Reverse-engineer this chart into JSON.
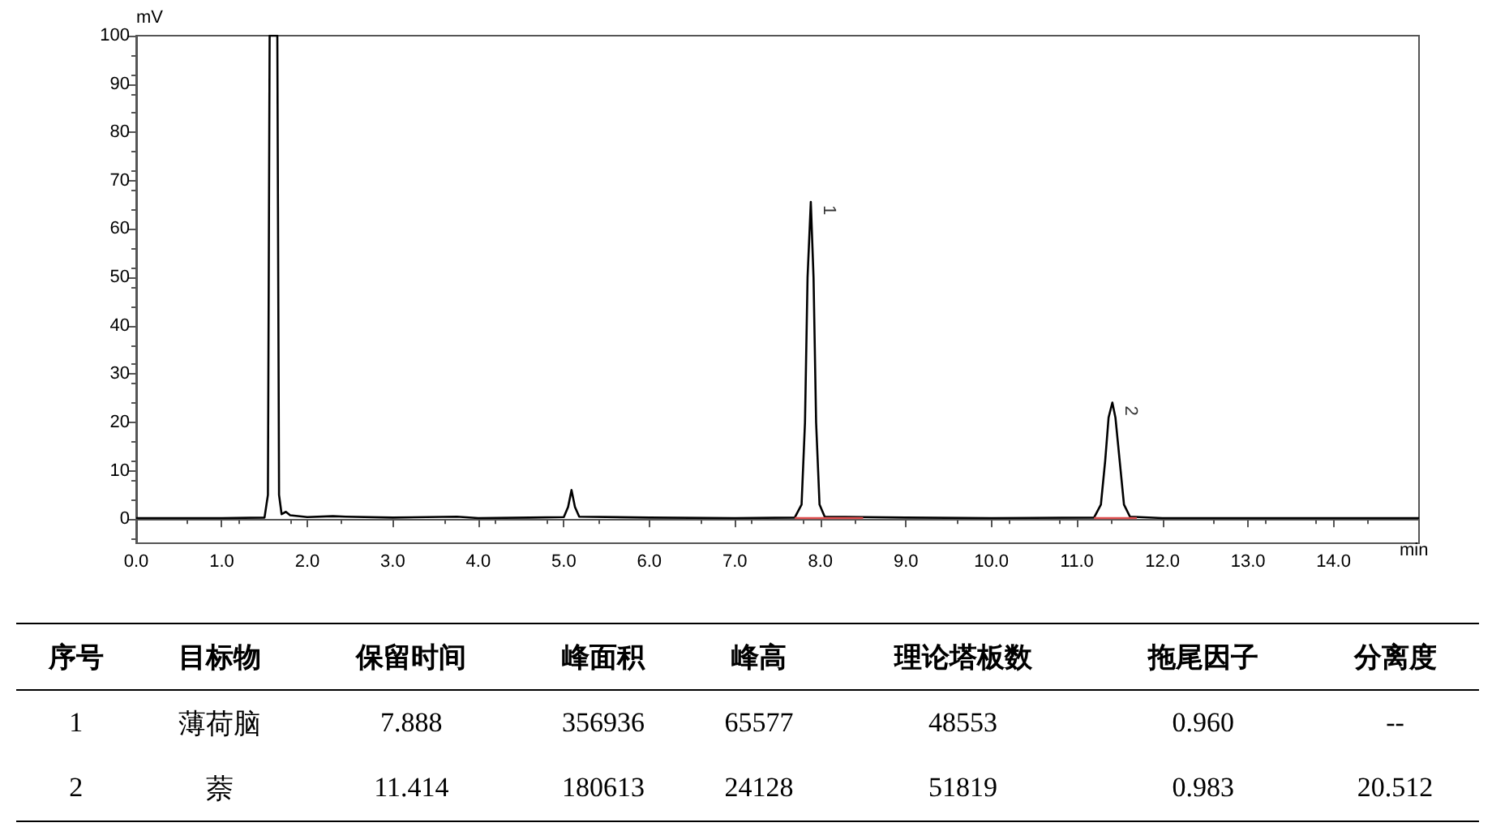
{
  "chart_data": [
    {
      "type": "line",
      "xlabel": "min",
      "ylabel": "mV",
      "marker": "none",
      "xlim": [
        0,
        15
      ],
      "xticks": [
        {
          "value": 0,
          "label": "0.0"
        },
        {
          "value": 1,
          "label": "1.0"
        },
        {
          "value": 2,
          "label": "2.0"
        },
        {
          "value": 3,
          "label": "3.0"
        },
        {
          "value": 4,
          "label": "4.0"
        },
        {
          "value": 5,
          "label": "5.0"
        },
        {
          "value": 6,
          "label": "6.0"
        },
        {
          "value": 7,
          "label": "7.0"
        },
        {
          "value": 8,
          "label": "8.0"
        },
        {
          "value": 9,
          "label": "9.0"
        },
        {
          "value": 10,
          "label": "10.0"
        },
        {
          "value": 11,
          "label": "11.0"
        },
        {
          "value": 12,
          "label": "12.0"
        },
        {
          "value": 13,
          "label": "13.0"
        },
        {
          "value": 14,
          "label": "14.0"
        }
      ],
      "ylim": [
        -5,
        100
      ],
      "yticks": [
        0,
        10,
        20,
        30,
        40,
        50,
        60,
        70,
        80,
        90,
        100
      ],
      "x": [
        0,
        1.0,
        1.5,
        1.54,
        1.56,
        1.65,
        1.67,
        1.7,
        1.75,
        1.8,
        2.0,
        2.3,
        2.45,
        3.0,
        3.75,
        4.0,
        4.6,
        5.0,
        5.05,
        5.09,
        5.13,
        5.18,
        6.0,
        7.0,
        7.7,
        7.78,
        7.82,
        7.85,
        7.888,
        7.92,
        7.95,
        7.99,
        8.05,
        9.0,
        10.0,
        11.2,
        11.28,
        11.33,
        11.37,
        11.414,
        11.45,
        11.5,
        11.55,
        11.62,
        12.0,
        15.0
      ],
      "series": [
        {
          "color": "#000000",
          "values": [
            0.2,
            0.2,
            0.3,
            5,
            100,
            100,
            5,
            1,
            1.5,
            0.8,
            0.4,
            0.6,
            0.5,
            0.3,
            0.5,
            0.2,
            0.3,
            0.4,
            2.5,
            6.0,
            2.5,
            0.5,
            0.3,
            0.2,
            0.3,
            3,
            20,
            50,
            65.6,
            50,
            20,
            3,
            0.5,
            0.3,
            0.2,
            0.3,
            3,
            12,
            21,
            24.1,
            21,
            12,
            3,
            0.5,
            0.2,
            0.2
          ]
        },
        {
          "color": "#e05050",
          "x": [
            7.7,
            8.5
          ],
          "values": [
            0.2,
            0.2
          ]
        },
        {
          "color": "#e05050",
          "x": [
            11.2,
            11.7
          ],
          "values": [
            0.2,
            0.2
          ]
        }
      ],
      "annotations": [
        {
          "text": "1",
          "x": 7.888,
          "y": 65.6
        },
        {
          "text": "2",
          "x": 11.414,
          "y": 24.1
        }
      ]
    },
    {
      "type": "other",
      "categories": [
        "序号",
        "目标物",
        "保留时间",
        "峰面积",
        "峰高",
        "理论塔板数",
        "拖尾因子",
        "分离度"
      ],
      "cell_labels": [
        [
          "1",
          "薄荷脑",
          "7.888",
          "356936",
          "65577",
          "48553",
          "0.960",
          "--"
        ],
        [
          "2",
          "萘",
          "11.414",
          "180613",
          "24128",
          "51819",
          "0.983",
          "20.512"
        ]
      ]
    }
  ]
}
